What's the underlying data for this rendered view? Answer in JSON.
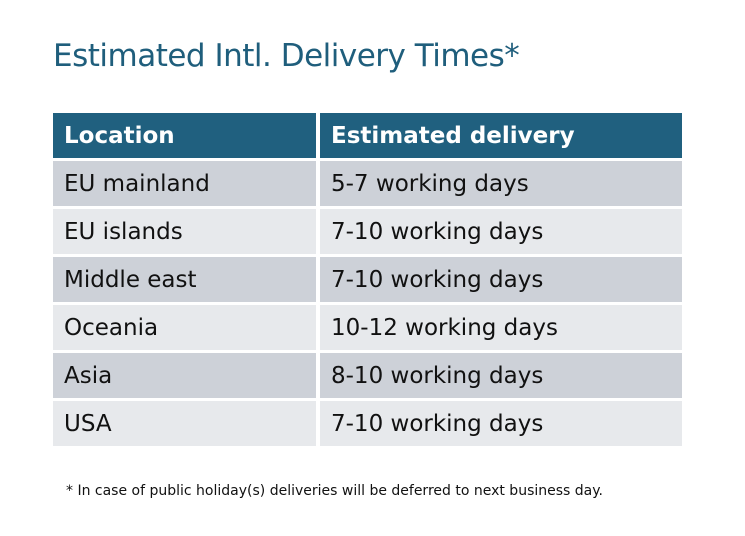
{
  "title": "Estimated Intl. Delivery Times*",
  "table": {
    "headers": [
      "Location",
      "Estimated delivery"
    ],
    "rows": [
      [
        "EU mainland",
        "5-7 working days"
      ],
      [
        "EU islands",
        "7-10 working days"
      ],
      [
        "Middle east",
        "7-10 working days"
      ],
      [
        "Oceania",
        "10-12 working days"
      ],
      [
        "Asia",
        "8-10 working days"
      ],
      [
        "USA",
        "7-10 working days"
      ]
    ]
  },
  "footnote": "* In case of public holiday(s) deliveries will be deferred to next business day.",
  "colors": {
    "header": "#20607f",
    "title": "#1f5e7c",
    "row_odd": "#cdd1d8",
    "row_even": "#e7e9ec"
  }
}
